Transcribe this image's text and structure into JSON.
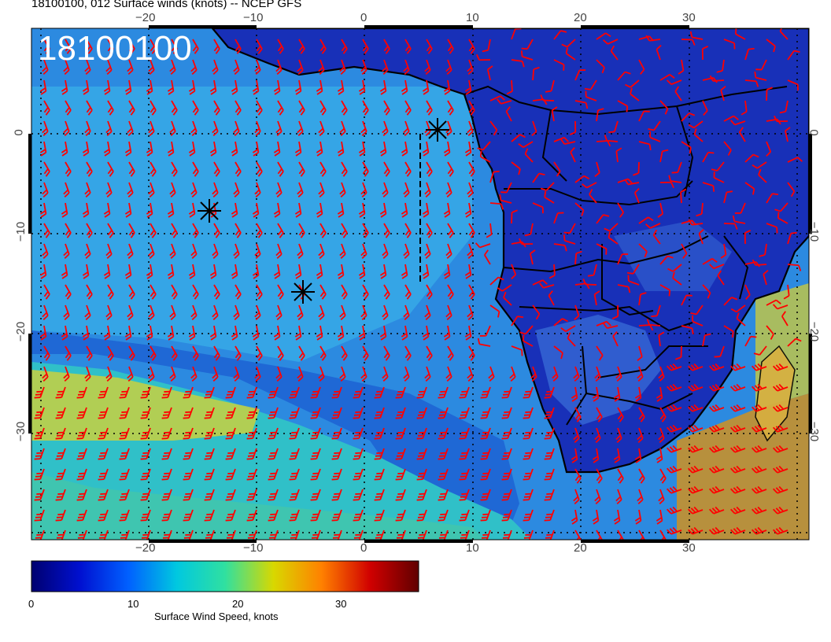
{
  "header": {
    "title": "18100100, 012 Surface winds (knots) -- NCEP GFS",
    "stamp": "18100100"
  },
  "axes": {
    "x_ticks": [
      "−20",
      "−10",
      "0",
      "10",
      "20",
      "30"
    ],
    "y_ticks": [
      "0",
      "−10",
      "−20",
      "−30"
    ]
  },
  "colorbar": {
    "label": "Surface Wind Speed, knots",
    "ticks": [
      "0",
      "10",
      "20",
      "30"
    ],
    "stops": [
      "#000070",
      "#0010d0",
      "#0060ff",
      "#00c8e0",
      "#30e0a0",
      "#d8d800",
      "#ff8000",
      "#d00000",
      "#600000"
    ]
  },
  "colors": {
    "ocean_calm": "#2060d8",
    "ocean_moderate": "#30a0e0",
    "ocean_strong": "#c8d040",
    "land": "#1428b8",
    "barb": "#ff0000"
  }
}
